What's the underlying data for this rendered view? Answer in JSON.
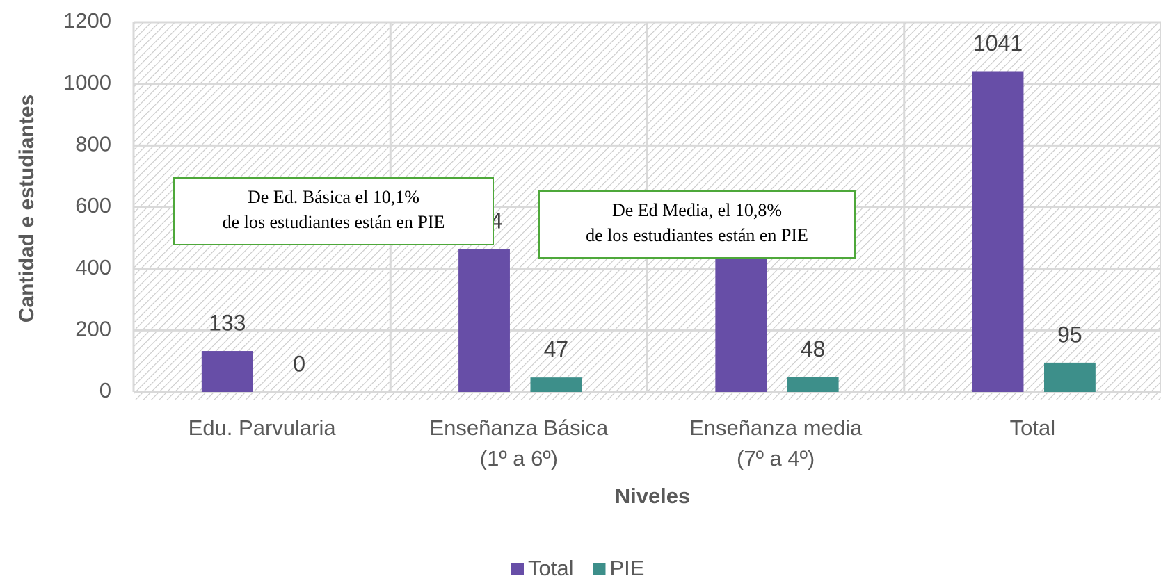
{
  "chart_data": {
    "type": "bar",
    "x_label": "Niveles",
    "y_label": "Cantidad e estudiantes",
    "categories": [
      "Edu. Parvularia",
      "Enseñanza Básica\n(1º a 6º)",
      "Enseñanza media\n(7º a 4º)",
      "Total"
    ],
    "series": [
      {
        "name": "Total",
        "color": "#674ea7",
        "values": [
          133,
          464,
          444,
          1041
        ]
      },
      {
        "name": "PIE",
        "color": "#3d8f8a",
        "values": [
          0,
          47,
          48,
          95
        ]
      }
    ],
    "ylim": [
      0,
      1200
    ],
    "yticks": [
      0,
      200,
      400,
      600,
      800,
      1000,
      1200
    ],
    "grid": true,
    "legend": "bottom",
    "annotations": [
      {
        "text": "De Ed. Básica el 10,1%\nde los estudiantes están en PIE"
      },
      {
        "text": "De Ed Media, el 10,8%\nde los estudiantes están en PIE"
      }
    ]
  }
}
